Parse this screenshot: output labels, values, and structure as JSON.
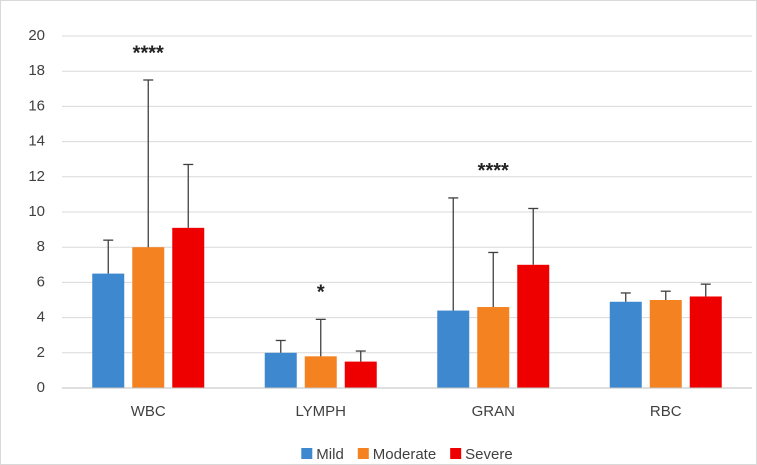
{
  "chart_data": {
    "type": "bar",
    "categories": [
      "WBC",
      "LYMPH",
      "GRAN",
      "RBC"
    ],
    "series": [
      {
        "name": "Mild",
        "color": "#3e88d0",
        "values": [
          6.5,
          2.0,
          4.4,
          4.9
        ],
        "errors": [
          1.9,
          0.7,
          6.4,
          0.5
        ]
      },
      {
        "name": "Moderate",
        "color": "#f58220",
        "values": [
          8.0,
          1.8,
          4.6,
          5.0
        ],
        "errors": [
          9.5,
          2.1,
          3.1,
          0.5
        ]
      },
      {
        "name": "Severe",
        "color": "#ee0000",
        "values": [
          9.1,
          1.5,
          7.0,
          5.2
        ],
        "errors": [
          3.6,
          0.6,
          3.2,
          0.7
        ]
      }
    ],
    "annotations": [
      {
        "text": "****",
        "category": "WBC"
      },
      {
        "text": "*",
        "category": "LYMPH"
      },
      {
        "text": "****",
        "category": "GRAN"
      }
    ],
    "ylim": [
      0,
      20
    ],
    "yticks": [
      0,
      2,
      4,
      6,
      8,
      10,
      12,
      14,
      16,
      18,
      20
    ],
    "grid": true,
    "legend": "bottom"
  }
}
